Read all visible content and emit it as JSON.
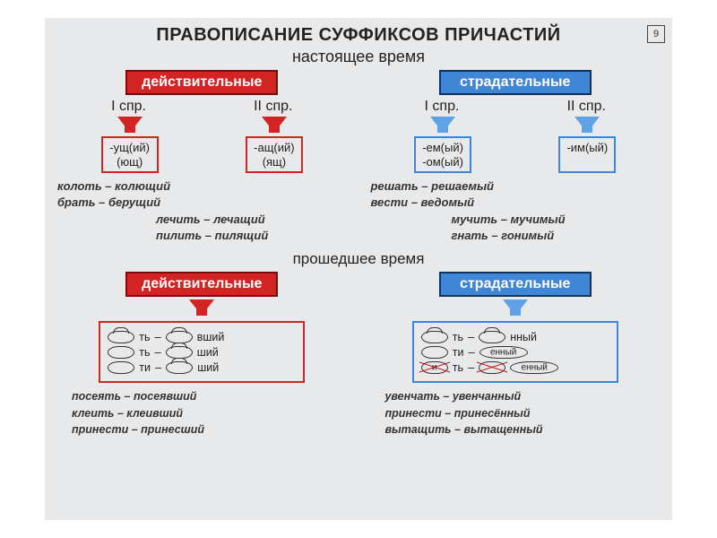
{
  "page_number": "9",
  "title": "ПРАВОПИСАНИЕ СУФФИКСОВ ПРИЧАСТИЙ",
  "present": {
    "subtitle": "настоящее время",
    "active": {
      "header": "действительные",
      "spr1_label": "I спр.",
      "spr2_label": "II спр.",
      "spr1_suffix_line1": "-ущ(ий)",
      "spr1_suffix_line2": "(ющ)",
      "spr2_suffix_line1": "-ащ(ий)",
      "spr2_suffix_line2": "(ящ)",
      "ex1_line1": "колоть – колющий",
      "ex1_line2": "брать – берущий",
      "ex2_line1": "лечить – лечащий",
      "ex2_line2": "пилить – пилящий"
    },
    "passive": {
      "header": "страдательные",
      "spr1_label": "I спр.",
      "spr2_label": "II спр.",
      "spr1_suffix_line1": "-ем(ый)",
      "spr1_suffix_line2": "-ом(ый)",
      "spr2_suffix_line1": "-им(ый)",
      "ex1_line1": "решать – решаемый",
      "ex1_line2": "вести – ведомый",
      "ex2_line1": "мучить – мучимый",
      "ex2_line2": "гнать – гонимый"
    }
  },
  "past": {
    "subtitle": "прошедшее время",
    "active": {
      "header": "действительные",
      "row1_left": "ть",
      "row1_right": "вший",
      "row2_left": "ть",
      "row2_right": "ший",
      "row3_left": "ти",
      "row3_right": "ший",
      "ex_line1": "посеять – посеявший",
      "ex_line2": "клеить – клеивший",
      "ex_line3": "принести – принесший"
    },
    "passive": {
      "header": "страдательные",
      "row1_left": "ть",
      "row1_right": "нный",
      "row2_left": "ти",
      "row2_right": "енный",
      "row3_left": "ть",
      "row3_right": "енный",
      "ex_line1": "увенчать – увенчанный",
      "ex_line2": "принести – принесённый",
      "ex_line3": "вытащить – вытащенный"
    }
  },
  "colors": {
    "red": "#d32323",
    "blue": "#3f87d6",
    "bg": "#e8e9eb"
  }
}
